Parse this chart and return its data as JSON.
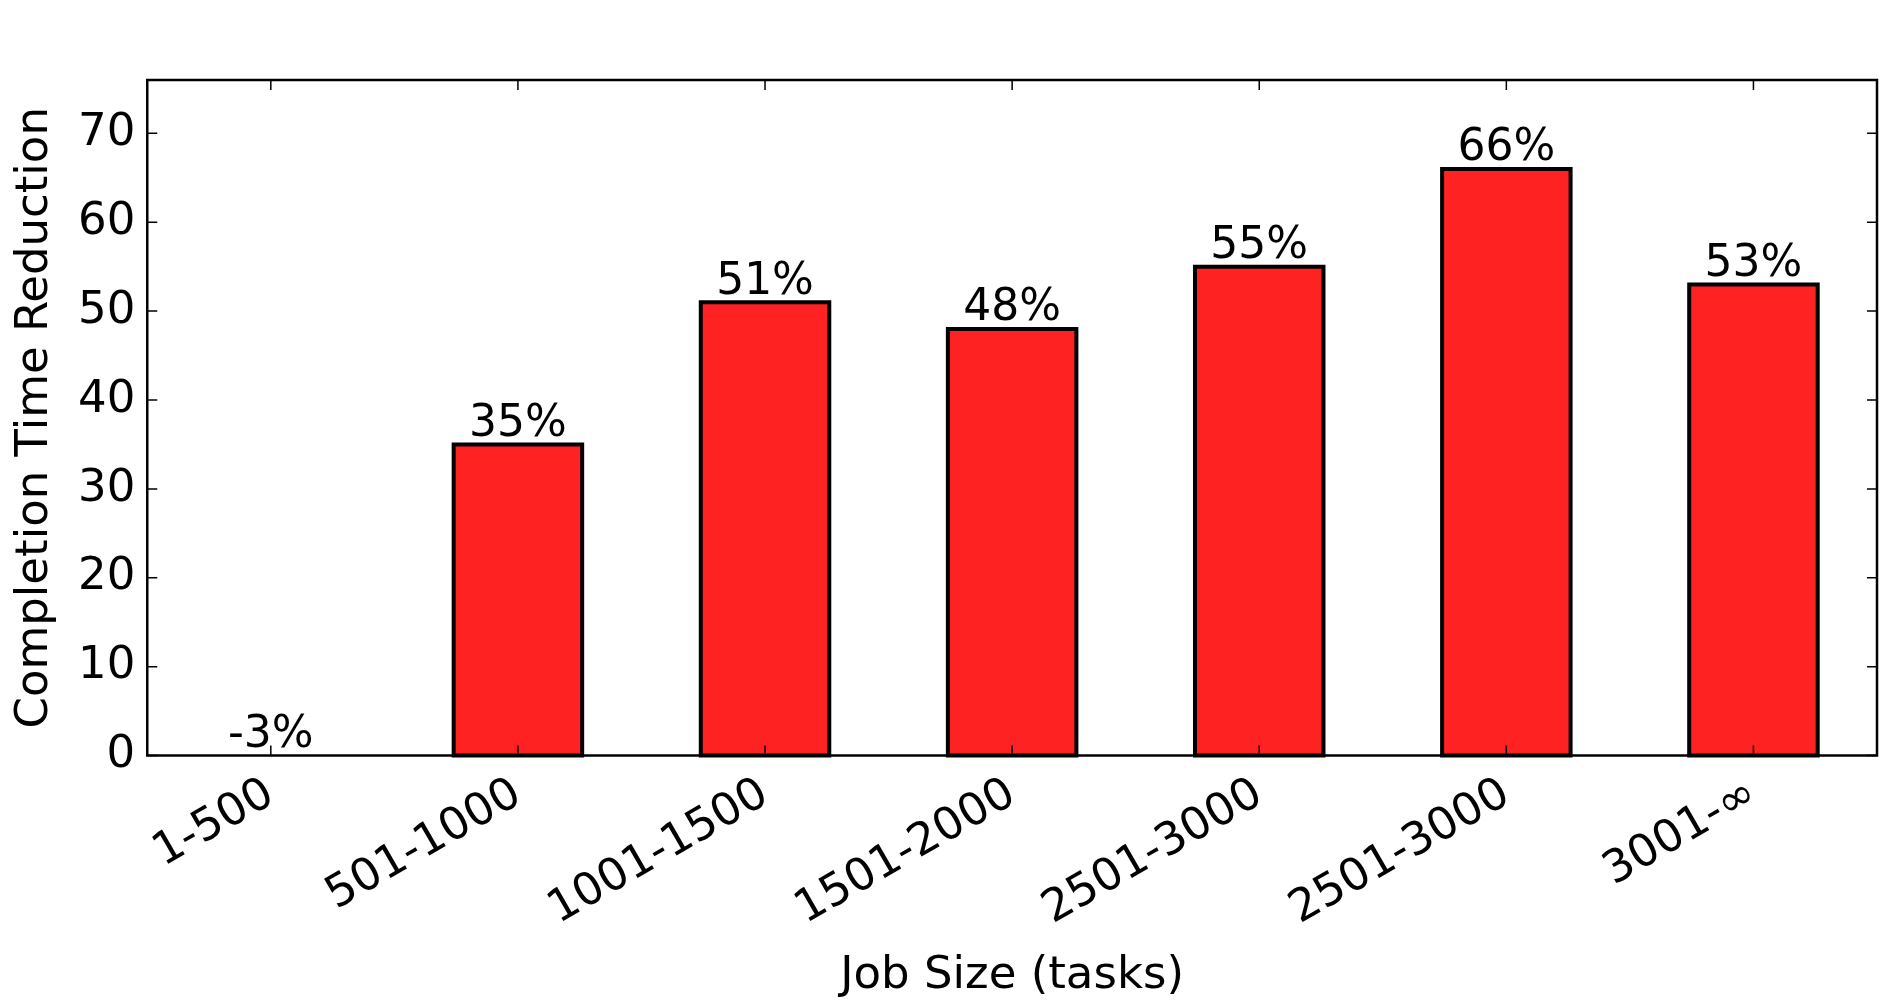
{
  "chart_data": {
    "type": "bar",
    "xlabel": "Job Size (tasks)",
    "ylabel": "Completion Time Reduction",
    "categories": [
      "1-500",
      "501-1000",
      "1001-1500",
      "1501-2000",
      "2501-3000",
      "2501-3000",
      "3001-∞"
    ],
    "values": [
      null,
      35,
      51,
      48,
      55,
      66,
      53
    ],
    "value_labels": [
      null,
      "35%",
      "51%",
      "48%",
      "55%",
      "66%",
      "53%"
    ],
    "annotations": [
      "-3%"
    ],
    "color": "#ff2222",
    "ylim": [
      0,
      76
    ],
    "yticks": [
      0,
      10,
      20,
      30,
      40,
      50,
      60,
      70
    ],
    "grid": false,
    "legend": false
  }
}
